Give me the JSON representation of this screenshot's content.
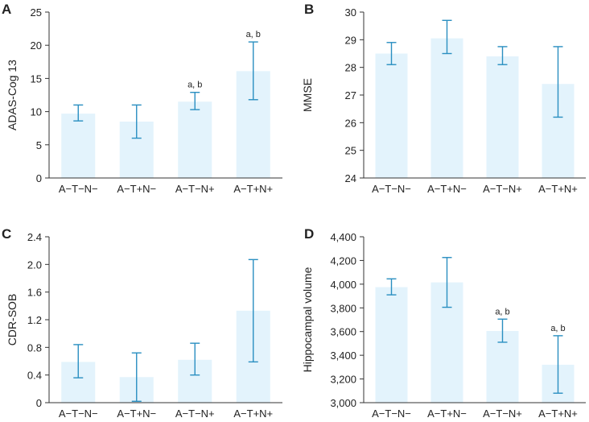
{
  "colors": {
    "bar": "#e3f3fc",
    "err": "#2a8fc1",
    "axis": "#333333",
    "text": "#222222"
  },
  "chart_data": [
    {
      "id": "A",
      "type": "bar",
      "panel_label": "A",
      "ylabel": "ADAS-Cog 13",
      "categories": [
        "A−T−N−",
        "A−T+N−",
        "A−T−N+",
        "A−T+N+"
      ],
      "values": [
        9.7,
        8.5,
        11.5,
        16.1
      ],
      "err_low": [
        8.6,
        6.0,
        10.3,
        11.8
      ],
      "err_high": [
        11.0,
        11.0,
        12.9,
        20.5
      ],
      "annotations": [
        "",
        "",
        "a, b",
        "a, b"
      ],
      "ylim": [
        0,
        25
      ],
      "ticks": [
        0,
        5,
        10,
        15,
        20,
        25
      ],
      "tick_labels": [
        "0",
        "5",
        "10",
        "15",
        "20",
        "25"
      ]
    },
    {
      "id": "B",
      "type": "bar",
      "panel_label": "B",
      "ylabel": "MMSE",
      "categories": [
        "A−T−N−",
        "A−T+N−",
        "A−T−N+",
        "A−T+N+"
      ],
      "values": [
        28.5,
        29.05,
        28.4,
        27.4
      ],
      "err_low": [
        28.1,
        28.5,
        28.1,
        26.2
      ],
      "err_high": [
        28.9,
        29.7,
        28.75,
        28.75
      ],
      "annotations": [
        "",
        "",
        "",
        ""
      ],
      "ylim": [
        24,
        30
      ],
      "ticks": [
        24,
        25,
        26,
        27,
        28,
        29,
        30
      ],
      "tick_labels": [
        "24",
        "25",
        "26",
        "27",
        "28",
        "29",
        "30"
      ]
    },
    {
      "id": "C",
      "type": "bar",
      "panel_label": "C",
      "ylabel": "CDR-SOB",
      "categories": [
        "A−T−N−",
        "A−T+N−",
        "A−T−N+",
        "A−T+N+"
      ],
      "values": [
        0.59,
        0.37,
        0.62,
        1.33
      ],
      "err_low": [
        0.36,
        0.02,
        0.4,
        0.59
      ],
      "err_high": [
        0.84,
        0.72,
        0.86,
        2.07
      ],
      "annotations": [
        "",
        "",
        "",
        ""
      ],
      "ylim": [
        0,
        2.4
      ],
      "ticks": [
        0,
        0.4,
        0.8,
        1.2,
        1.6,
        2.0,
        2.4
      ],
      "tick_labels": [
        "0",
        "0.4",
        "0.8",
        "1.2",
        "1.6",
        "2.0",
        "2.4"
      ]
    },
    {
      "id": "D",
      "type": "bar",
      "panel_label": "D",
      "ylabel": "Hippocampal volume",
      "categories": [
        "A−T−N−",
        "A−T+N−",
        "A−T−N+",
        "A−T+N+"
      ],
      "values": [
        3975,
        4015,
        3605,
        3320
      ],
      "err_low": [
        3910,
        3805,
        3510,
        3080
      ],
      "err_high": [
        4045,
        4225,
        3705,
        3565
      ],
      "annotations": [
        "",
        "",
        "a, b",
        "a, b"
      ],
      "ylim": [
        3000,
        4400
      ],
      "ticks": [
        3000,
        3200,
        3400,
        3600,
        3800,
        4000,
        4200,
        4400
      ],
      "tick_labels": [
        "3,000",
        "3,200",
        "3,400",
        "3,600",
        "3,800",
        "4,000",
        "4,200",
        "4,400"
      ]
    }
  ]
}
